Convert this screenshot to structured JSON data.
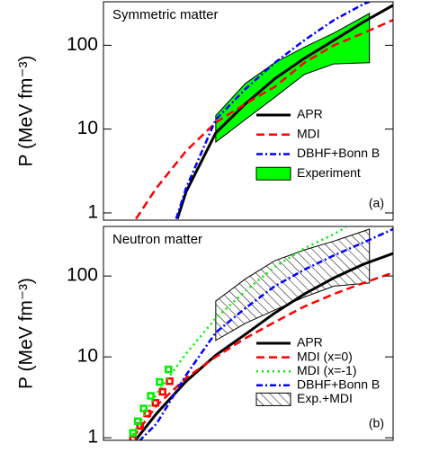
{
  "chart_data": [
    {
      "type": "line",
      "title": "Symmetric matter",
      "panel_label": "(a)",
      "ylabel": "P (MeV fm⁻³)",
      "xlim": [
        0.1,
        5.0
      ],
      "ylim": [
        0.82,
        330
      ],
      "log_y": true,
      "yticks": [
        1,
        10,
        100
      ],
      "legend": "right",
      "series": [
        {
          "name": "APR",
          "color": "#000000",
          "dash": "solid",
          "x": [
            1.35,
            1.5,
            2,
            2.5,
            3,
            3.5,
            4,
            4.5,
            5
          ],
          "values": [
            0.85,
            1.8,
            9,
            20,
            40,
            70,
            115,
            190,
            300
          ]
        },
        {
          "name": "MDI",
          "color": "#ff0000",
          "dash": "dash",
          "x": [
            0.65,
            1,
            1.5,
            2,
            2.5,
            3,
            3.5,
            4,
            4.5,
            5
          ],
          "values": [
            0.85,
            2,
            5.5,
            12,
            20,
            32,
            62,
            100,
            140,
            200
          ]
        },
        {
          "name": "DBHF+Bonn B",
          "color": "#0000ff",
          "dash": "dashdot",
          "x": [
            1.33,
            1.5,
            2,
            2.5,
            3,
            3.5,
            4,
            4.5,
            4.6
          ],
          "values": [
            0.85,
            2,
            13,
            30,
            62,
            115,
            200,
            310,
            330
          ]
        },
        {
          "name": "Experiment",
          "color": "#00ff00",
          "dash": "band",
          "x": [
            2,
            2.5,
            3,
            3.5,
            4,
            4.6
          ],
          "high": [
            14.5,
            35,
            62,
            95,
            140,
            240
          ],
          "low": [
            7,
            13,
            24,
            45,
            60,
            62
          ]
        }
      ]
    },
    {
      "type": "line",
      "title": "Neutron matter",
      "panel_label": "(b)",
      "ylabel": "P (MeV fm⁻³)",
      "xlim": [
        0.1,
        5.0
      ],
      "ylim": [
        0.93,
        410
      ],
      "log_y": true,
      "yticks": [
        1,
        10,
        100
      ],
      "legend": "right",
      "series": [
        {
          "name": "APR",
          "color": "#000000",
          "dash": "solid",
          "x": [
            0.65,
            1,
            1.5,
            2,
            2.5,
            3,
            3.5,
            4,
            4.5,
            5
          ],
          "values": [
            0.95,
            2,
            5,
            10.5,
            19,
            35,
            60,
            95,
            140,
            190
          ]
        },
        {
          "name": "MDI (x=0)",
          "color": "#ff0000",
          "dash": "dash",
          "x": [
            0.6,
            1,
            1.5,
            2,
            2.5,
            3,
            3.5,
            4,
            4.5,
            5
          ],
          "values": [
            1,
            2.5,
            5.5,
            10,
            17,
            27,
            42,
            60,
            82,
            110
          ],
          "markers": {
            "x": [
              0.6,
              0.72,
              0.84,
              0.98,
              1.1,
              1.22
            ],
            "values": [
              0.97,
              1.4,
              2,
              2.7,
              3.7,
              5
            ]
          }
        },
        {
          "name": "MDI (x=-1)",
          "color": "#00ee00",
          "dash": "dot",
          "x": [
            0.6,
            1,
            1.5,
            2,
            2.5,
            3,
            3.5,
            4,
            4.2
          ],
          "values": [
            1.1,
            3.5,
            11,
            30,
            65,
            130,
            220,
            330,
            400
          ],
          "markers": {
            "x": [
              0.6,
              0.68,
              0.78,
              0.9,
              1.05,
              1.2
            ],
            "values": [
              1.15,
              1.6,
              2.3,
              3.3,
              4.9,
              7
            ]
          }
        },
        {
          "name": "DBHF+Bonn B",
          "color": "#0000ff",
          "dash": "dashdot",
          "x": [
            0.7,
            1,
            1.5,
            2,
            2.5,
            3,
            3.5,
            4,
            4.5,
            5
          ],
          "values": [
            0.9,
            1.5,
            6,
            20,
            40,
            75,
            120,
            180,
            260,
            380
          ]
        },
        {
          "name": "Exp.+MDI",
          "color": "#000000",
          "dash": "hatch",
          "x": [
            2,
            2.5,
            3,
            3.5,
            4,
            4.6
          ],
          "high": [
            49,
            92,
            155,
            210,
            270,
            380
          ],
          "low": [
            16,
            26,
            38,
            55,
            75,
            82
          ]
        }
      ]
    }
  ]
}
